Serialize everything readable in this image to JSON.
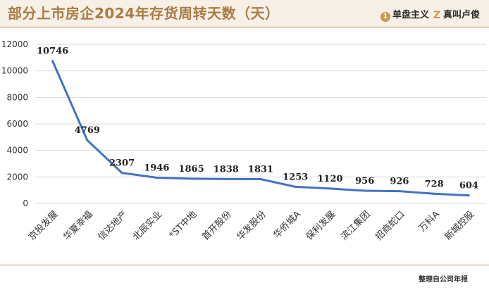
{
  "header": {
    "title": "部分上市房企2024年存货周转天数（天）",
    "brand_primary": "单盘主义",
    "brand_secondary": "真叫卢俊",
    "brand_primary_icon": "circle-1-icon",
    "brand_secondary_icon": "z-logo-icon",
    "accent_color": "#a87c45"
  },
  "footer": {
    "source": "整理自公司年报"
  },
  "chart_data": {
    "type": "line",
    "categories": [
      "京投发展",
      "华夏幸福",
      "信达地产",
      "北辰实业",
      "*ST中地",
      "首开股份",
      "华发股份",
      "华侨城A",
      "保利发展",
      "滨江集团",
      "招商蛇口",
      "万科A",
      "新城控股"
    ],
    "series": [
      {
        "values": [
          10746,
          4769,
          2307,
          1946,
          1865,
          1838,
          1831,
          1253,
          1120,
          956,
          926,
          728,
          604
        ],
        "color": "#4472c4"
      }
    ],
    "ylim": [
      0,
      12000
    ],
    "yticks": [
      0,
      2000,
      4000,
      6000,
      8000,
      10000,
      12000
    ],
    "grid": true,
    "data_labels": true,
    "legend": "none"
  }
}
